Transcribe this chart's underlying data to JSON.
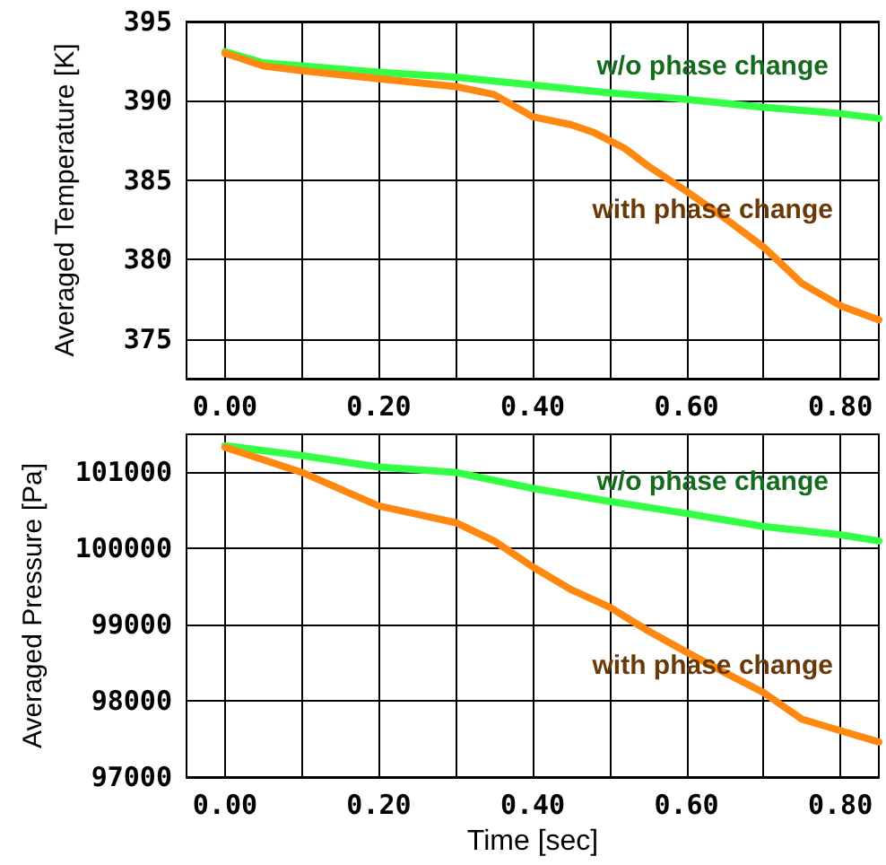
{
  "chart_data": [
    {
      "type": "line",
      "ylabel": "Averaged Temperature [K]",
      "grid": true,
      "marker": "none",
      "line_style": "solid",
      "xlim": [
        -0.05,
        0.85
      ],
      "xticks": [
        {
          "value": 0,
          "label": "0.00"
        },
        {
          "value": 0.1,
          "label": null
        },
        {
          "value": 0.2,
          "label": "0.20"
        },
        {
          "value": 0.3,
          "label": null
        },
        {
          "value": 0.4,
          "label": "0.40"
        },
        {
          "value": 0.5,
          "label": null
        },
        {
          "value": 0.6,
          "label": "0.60"
        },
        {
          "value": 0.7,
          "label": null
        },
        {
          "value": 0.8,
          "label": "0.80"
        }
      ],
      "ylim": [
        372.5,
        395
      ],
      "yticks": [
        375,
        380,
        385,
        390,
        395
      ],
      "series": [
        {
          "name": "w/o phase change",
          "color": "#33ff44",
          "x": [
            0,
            0.05,
            0.1,
            0.2,
            0.3,
            0.4,
            0.5,
            0.6,
            0.7,
            0.8,
            0.85
          ],
          "values": [
            393.1,
            392.4,
            392.2,
            391.8,
            391.5,
            391.0,
            390.5,
            390.1,
            389.6,
            389.2,
            388.9
          ]
        },
        {
          "name": "with phase change",
          "color": "#ff8811",
          "x": [
            0,
            0.05,
            0.1,
            0.2,
            0.3,
            0.35,
            0.4,
            0.45,
            0.48,
            0.52,
            0.55,
            0.6,
            0.65,
            0.7,
            0.75,
            0.8,
            0.85
          ],
          "values": [
            393.0,
            392.2,
            391.9,
            391.4,
            390.9,
            390.4,
            389.0,
            388.5,
            388.0,
            387.0,
            385.9,
            384.3,
            382.6,
            380.8,
            378.5,
            377.1,
            376.2
          ]
        }
      ]
    },
    {
      "type": "line",
      "xlabel": "Time [sec]",
      "ylabel": "Averaged Pressure [Pa]",
      "grid": true,
      "marker": "none",
      "line_style": "solid",
      "xlim": [
        -0.05,
        0.85
      ],
      "xticks": [
        {
          "value": 0,
          "label": "0.00"
        },
        {
          "value": 0.1,
          "label": null
        },
        {
          "value": 0.2,
          "label": "0.20"
        },
        {
          "value": 0.3,
          "label": null
        },
        {
          "value": 0.4,
          "label": "0.40"
        },
        {
          "value": 0.5,
          "label": null
        },
        {
          "value": 0.6,
          "label": "0.60"
        },
        {
          "value": 0.7,
          "label": null
        },
        {
          "value": 0.8,
          "label": "0.80"
        }
      ],
      "ylim": [
        97000,
        101500
      ],
      "yticks": [
        97000,
        98000,
        99000,
        100000,
        101000
      ],
      "series": [
        {
          "name": "w/o phase change",
          "color": "#33ff44",
          "x": [
            0,
            0.1,
            0.2,
            0.3,
            0.4,
            0.5,
            0.6,
            0.7,
            0.8,
            0.85
          ],
          "values": [
            101350,
            101220,
            101070,
            101000,
            100790,
            100620,
            100460,
            100290,
            100180,
            100100
          ]
        },
        {
          "name": "with phase change",
          "color": "#ff8811",
          "x": [
            0,
            0.1,
            0.2,
            0.25,
            0.3,
            0.35,
            0.4,
            0.45,
            0.5,
            0.55,
            0.6,
            0.65,
            0.7,
            0.75,
            0.8,
            0.85
          ],
          "values": [
            101330,
            101000,
            100560,
            100450,
            100340,
            100100,
            99760,
            99460,
            99230,
            98920,
            98640,
            98370,
            98110,
            97760,
            97610,
            97460
          ]
        }
      ]
    }
  ]
}
